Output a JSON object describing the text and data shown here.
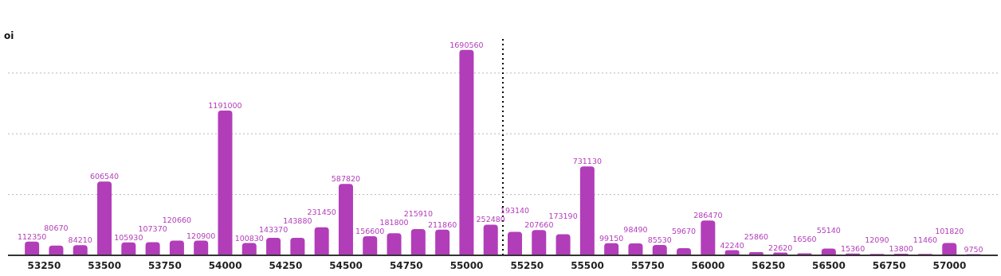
{
  "chart_data": {
    "type": "bar",
    "ylabel": "oi",
    "x": [
      53200,
      53300,
      53400,
      53500,
      53600,
      53700,
      53800,
      53900,
      54000,
      54100,
      54200,
      54300,
      54400,
      54500,
      54600,
      54700,
      54800,
      54900,
      55000,
      55100,
      55200,
      55300,
      55400,
      55500,
      55600,
      55700,
      55800,
      55900,
      56000,
      56100,
      56200,
      56300,
      56400,
      56500,
      56600,
      56700,
      56800,
      56900,
      57000,
      57100
    ],
    "values": [
      112350,
      80670,
      84210,
      606540,
      105930,
      107370,
      120660,
      120900,
      1191000,
      100830,
      143370,
      143880,
      231450,
      587820,
      156600,
      181800,
      215910,
      211860,
      1690560,
      252480,
      193140,
      207660,
      173190,
      731130,
      99150,
      98490,
      85530,
      59670,
      286470,
      42240,
      25860,
      22620,
      16560,
      55140,
      15360,
      12090,
      13800,
      11460,
      101820,
      9750
    ],
    "color": "#b23db9",
    "data_labels": true,
    "xlim": [
      53100,
      57200
    ],
    "xticks": [
      53250,
      53500,
      53750,
      54000,
      54250,
      54500,
      54750,
      55000,
      55250,
      55500,
      55750,
      56000,
      56250,
      56500,
      56750,
      57000
    ],
    "ylim": [
      0,
      1800000
    ],
    "yticks": [
      {
        "value": 500000,
        "label": null
      },
      {
        "value": 1000000,
        "label": null
      },
      {
        "value": 1500000,
        "label": null
      }
    ],
    "tick_labels": "x",
    "grid": "y",
    "ref_lines": [
      {
        "axis": "x",
        "value": 55150,
        "line_style": "dotted",
        "color": "#000000"
      }
    ]
  }
}
